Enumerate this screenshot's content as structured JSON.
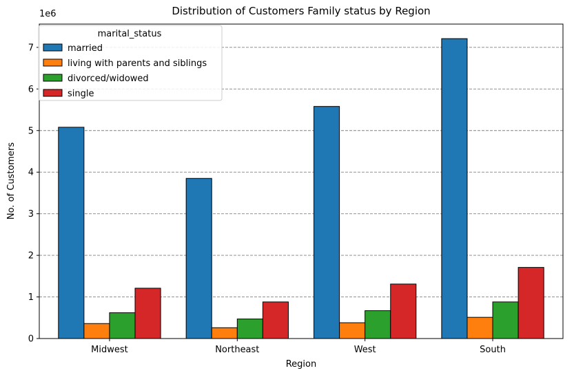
{
  "chart_data": {
    "type": "bar",
    "title": "Distribution of Customers Family status by Region",
    "xlabel": "Region",
    "ylabel": "No. of Customers",
    "y_scale_label": "1e6",
    "ylim": [
      0,
      7.56
    ],
    "yticks": [
      "0",
      "1",
      "2",
      "3",
      "4",
      "5",
      "6",
      "7"
    ],
    "categories": [
      "Midwest",
      "Northeast",
      "West",
      "South"
    ],
    "legend": {
      "title": "marital_status",
      "placement": "top-left"
    },
    "grid": "y-dashed",
    "series": [
      {
        "name": "married",
        "color": "#1f77b4",
        "values": [
          5.08,
          3.85,
          5.58,
          7.21
        ]
      },
      {
        "name": "living with parents and siblings",
        "color": "#ff7f0e",
        "values": [
          0.36,
          0.26,
          0.38,
          0.51
        ]
      },
      {
        "name": "divorced/widowed",
        "color": "#2ca02c",
        "values": [
          0.62,
          0.47,
          0.67,
          0.88
        ]
      },
      {
        "name": "single",
        "color": "#d62728",
        "values": [
          1.21,
          0.88,
          1.31,
          1.71
        ]
      }
    ]
  }
}
